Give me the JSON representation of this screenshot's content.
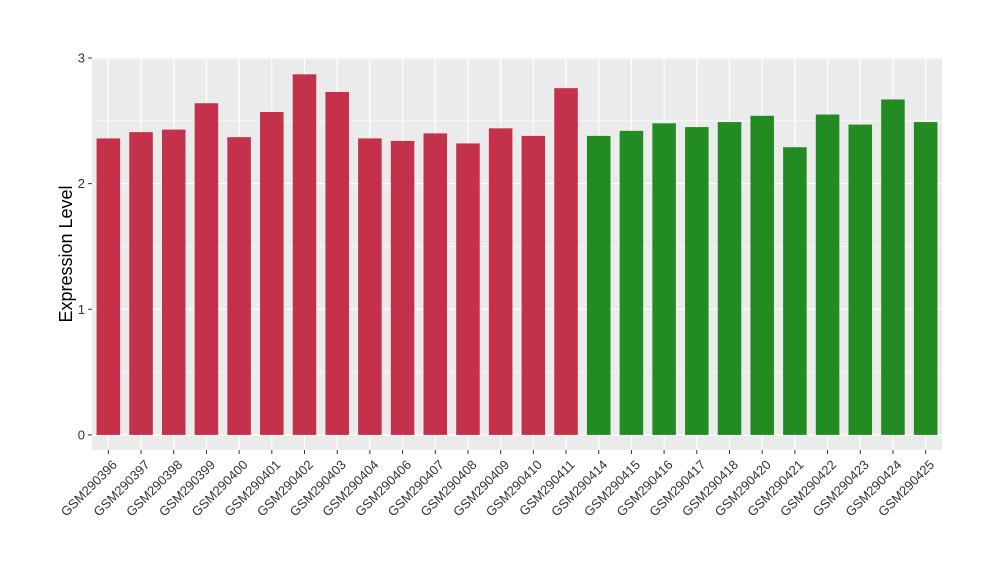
{
  "chart_data": {
    "type": "bar",
    "ylabel": "Expression Level",
    "xlabel": "",
    "ylim": [
      -0.12,
      3.0
    ],
    "yticks": [
      "0",
      "1",
      "2",
      "3"
    ],
    "grid": true,
    "legend": "none",
    "colors": {
      "group_a": "#c3314a",
      "group_b": "#228b22",
      "panel": "#ebebeb",
      "grid": "#ffffff"
    },
    "categories": [
      "GSM290396",
      "GSM290397",
      "GSM290398",
      "GSM290399",
      "GSM290400",
      "GSM290401",
      "GSM290402",
      "GSM290403",
      "GSM290404",
      "GSM290406",
      "GSM290407",
      "GSM290408",
      "GSM290409",
      "GSM290410",
      "GSM290411",
      "GSM290414",
      "GSM290415",
      "GSM290416",
      "GSM290417",
      "GSM290418",
      "GSM290420",
      "GSM290421",
      "GSM290422",
      "GSM290423",
      "GSM290424",
      "GSM290425"
    ],
    "values": [
      2.36,
      2.41,
      2.43,
      2.64,
      2.37,
      2.57,
      2.87,
      2.73,
      2.36,
      2.34,
      2.4,
      2.32,
      2.44,
      2.38,
      2.76,
      2.38,
      2.42,
      2.48,
      2.45,
      2.49,
      2.54,
      2.29,
      2.55,
      2.47,
      2.67,
      2.49
    ],
    "groups": [
      "a",
      "a",
      "a",
      "a",
      "a",
      "a",
      "a",
      "a",
      "a",
      "a",
      "a",
      "a",
      "a",
      "a",
      "a",
      "b",
      "b",
      "b",
      "b",
      "b",
      "b",
      "b",
      "b",
      "b",
      "b",
      "b"
    ]
  }
}
